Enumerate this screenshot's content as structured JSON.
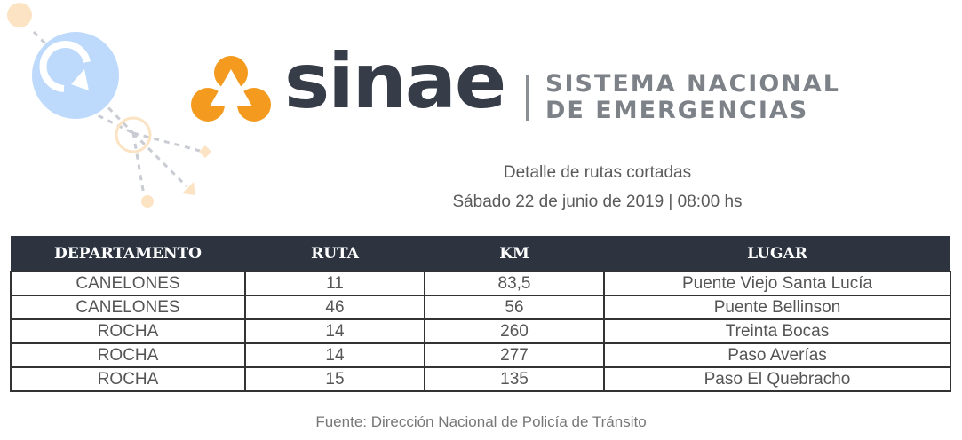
{
  "logo": {
    "name": "sinae",
    "tagline": [
      "SISTEMA NACIONAL",
      "DE EMERGENCIAS"
    ],
    "accent": "#f39a1f"
  },
  "subtitle": "Detalle de rutas cortadas",
  "date": "Sábado 22 de junio de 2019 | 08:00 hs",
  "table": {
    "headers": [
      "DEPARTAMENTO",
      "RUTA",
      "KM",
      "LUGAR"
    ],
    "rows": [
      [
        "CANELONES",
        "11",
        "83,5",
        "Puente Viejo Santa Lucía"
      ],
      [
        "CANELONES",
        "46",
        "56",
        "Puente Bellinson"
      ],
      [
        "ROCHA",
        "14",
        "260",
        "Treinta Bocas"
      ],
      [
        "ROCHA",
        "14",
        "277",
        "Paso Averías"
      ],
      [
        "ROCHA",
        "15",
        "135",
        "Paso El Quebracho"
      ]
    ]
  },
  "source": "Fuente: Dirección Nacional de Policía de Tránsito"
}
